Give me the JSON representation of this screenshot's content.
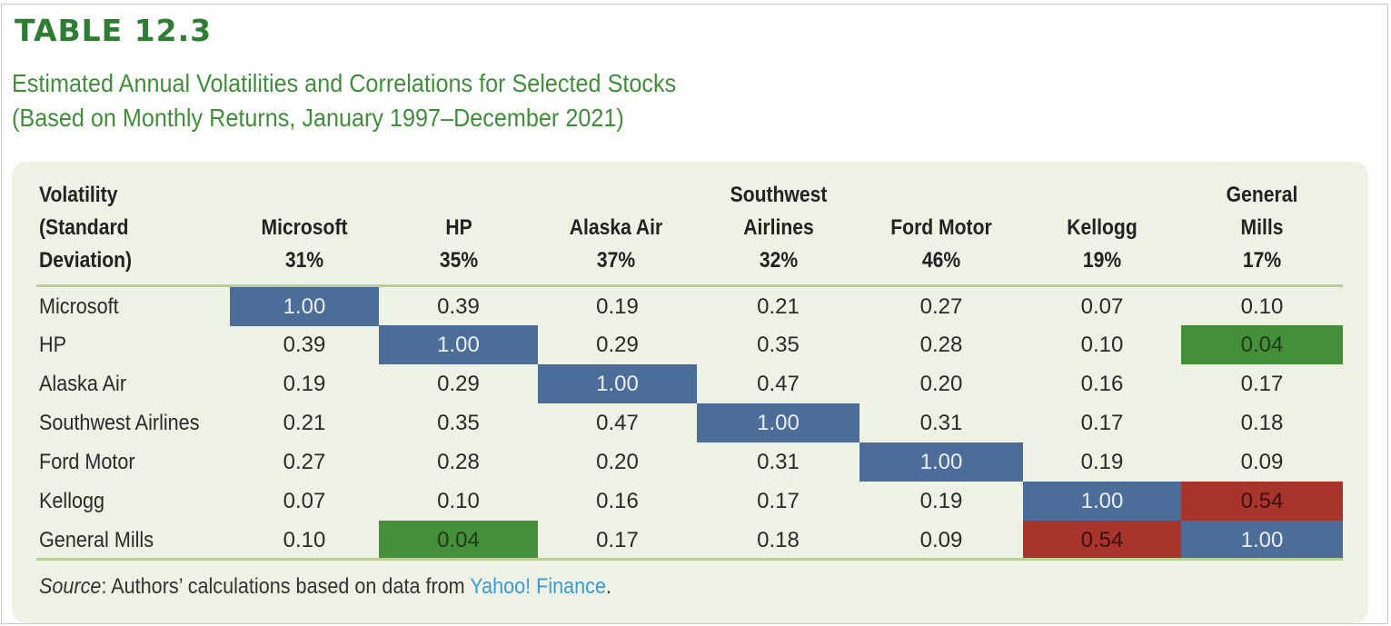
{
  "table_label": "TABLE 12.3",
  "title_line1": "Estimated Annual Volatilities and Correlations for Selected Stocks",
  "title_line2": "(Based on Monthly Returns, January 1997–December 2021)",
  "corner_header": [
    "Volatility",
    "(Standard",
    "Deviation)"
  ],
  "columns": [
    {
      "name_lines": [
        "",
        "Microsoft"
      ],
      "volatility": "31%"
    },
    {
      "name_lines": [
        "",
        "HP"
      ],
      "volatility": "35%"
    },
    {
      "name_lines": [
        "",
        "Alaska Air"
      ],
      "volatility": "37%"
    },
    {
      "name_lines": [
        "Southwest",
        "Airlines"
      ],
      "volatility": "32%"
    },
    {
      "name_lines": [
        "",
        "Ford Motor"
      ],
      "volatility": "46%"
    },
    {
      "name_lines": [
        "",
        "Kellogg"
      ],
      "volatility": "19%"
    },
    {
      "name_lines": [
        "General",
        "Mills"
      ],
      "volatility": "17%"
    }
  ],
  "rows": [
    {
      "label": "Microsoft",
      "values": [
        "1.00",
        "0.39",
        "0.19",
        "0.21",
        "0.27",
        "0.07",
        "0.10"
      ]
    },
    {
      "label": "HP",
      "values": [
        "0.39",
        "1.00",
        "0.29",
        "0.35",
        "0.28",
        "0.10",
        "0.04"
      ]
    },
    {
      "label": "Alaska Air",
      "values": [
        "0.19",
        "0.29",
        "1.00",
        "0.47",
        "0.20",
        "0.16",
        "0.17"
      ]
    },
    {
      "label": "Southwest Airlines",
      "values": [
        "0.21",
        "0.35",
        "0.47",
        "1.00",
        "0.31",
        "0.17",
        "0.18"
      ]
    },
    {
      "label": "Ford Motor",
      "values": [
        "0.27",
        "0.28",
        "0.20",
        "0.31",
        "1.00",
        "0.19",
        "0.09"
      ]
    },
    {
      "label": "Kellogg",
      "values": [
        "0.07",
        "0.10",
        "0.16",
        "0.17",
        "0.19",
        "1.00",
        "0.54"
      ]
    },
    {
      "label": "General Mills",
      "values": [
        "0.10",
        "0.04",
        "0.17",
        "0.18",
        "0.09",
        "0.54",
        "1.00"
      ]
    }
  ],
  "highlight_colors": {
    "diagonal": "#4d6d99",
    "lowest": "#44903a",
    "highest": "#a8352c"
  },
  "lowest_pair": [
    "HP",
    "General Mills"
  ],
  "highest_pair": [
    "Kellogg",
    "General Mills"
  ],
  "source": {
    "label": "Source",
    "text": ": Authors’ calculations based on data from ",
    "link": "Yahoo! Finance",
    "end": "."
  }
}
